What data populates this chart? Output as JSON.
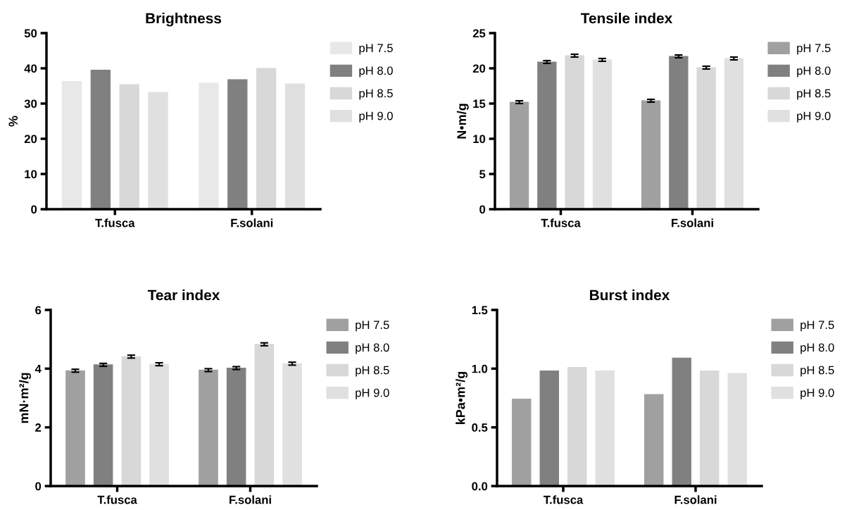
{
  "chart_data": [
    {
      "type": "bar",
      "title": "Brightness",
      "ylabel": "%",
      "categories": [
        "T.fusca",
        "F.solani"
      ],
      "ylim": [
        0,
        50
      ],
      "yticks": [
        0,
        10,
        20,
        30,
        40,
        50
      ],
      "grid": false,
      "legend": "right",
      "series": [
        {
          "name": "pH 7.5",
          "color": "#e8e8e8",
          "values": [
            36.3,
            35.8
          ]
        },
        {
          "name": "pH 8.0",
          "color": "#808080",
          "values": [
            39.5,
            36.8
          ]
        },
        {
          "name": "pH 8.5",
          "color": "#d8d8d8",
          "values": [
            35.4,
            40.0
          ]
        },
        {
          "name": "pH 9.0",
          "color": "#e0e0e0",
          "values": [
            33.2,
            35.6
          ]
        }
      ]
    },
    {
      "type": "bar",
      "title": "Tensile index",
      "ylabel": "N•m/g",
      "categories": [
        "T.fusca",
        "F.solani"
      ],
      "ylim": [
        0,
        25
      ],
      "yticks": [
        0,
        5,
        10,
        15,
        20,
        25
      ],
      "grid": false,
      "legend": "right",
      "series": [
        {
          "name": "pH 7.5",
          "color": "#a0a0a0",
          "values": [
            15.2,
            15.4
          ],
          "errors": [
            0.2,
            0.2
          ]
        },
        {
          "name": "pH 8.0",
          "color": "#808080",
          "values": [
            20.9,
            21.7
          ],
          "errors": [
            0.2,
            0.2
          ]
        },
        {
          "name": "pH 8.5",
          "color": "#d8d8d8",
          "values": [
            21.8,
            20.1
          ],
          "errors": [
            0.2,
            0.2
          ]
        },
        {
          "name": "pH 9.0",
          "color": "#e0e0e0",
          "values": [
            21.2,
            21.4
          ],
          "errors": [
            0.2,
            0.2
          ]
        }
      ]
    },
    {
      "type": "bar",
      "title": "Tear index",
      "ylabel": "mN·m²/g",
      "categories": [
        "T.fusca",
        "F.solani"
      ],
      "ylim": [
        0,
        6
      ],
      "yticks": [
        0,
        2,
        4,
        6
      ],
      "grid": false,
      "legend": "right",
      "series": [
        {
          "name": "pH 7.5",
          "color": "#a0a0a0",
          "values": [
            3.93,
            3.95
          ],
          "errors": [
            0.05,
            0.05
          ]
        },
        {
          "name": "pH 8.0",
          "color": "#808080",
          "values": [
            4.13,
            4.02
          ],
          "errors": [
            0.05,
            0.05
          ]
        },
        {
          "name": "pH 8.5",
          "color": "#d8d8d8",
          "values": [
            4.41,
            4.83
          ],
          "errors": [
            0.05,
            0.05
          ]
        },
        {
          "name": "pH 9.0",
          "color": "#e0e0e0",
          "values": [
            4.15,
            4.17
          ],
          "errors": [
            0.05,
            0.05
          ]
        }
      ]
    },
    {
      "type": "bar",
      "title": "Burst index",
      "ylabel": "kPa•m²/g",
      "categories": [
        "T.fusca",
        "F.solani"
      ],
      "ylim": [
        0,
        1.5
      ],
      "yticks": [
        {
          "value": 0,
          "label": "0.0"
        },
        0.5,
        {
          "value": 1,
          "label": "1.0"
        },
        1.5
      ],
      "grid": false,
      "legend": "right",
      "series": [
        {
          "name": "pH 7.5",
          "color": "#a0a0a0",
          "values": [
            0.74,
            0.78
          ]
        },
        {
          "name": "pH 8.0",
          "color": "#808080",
          "values": [
            0.98,
            1.09
          ]
        },
        {
          "name": "pH 8.5",
          "color": "#d8d8d8",
          "values": [
            1.01,
            0.98
          ]
        },
        {
          "name": "pH 9.0",
          "color": "#e0e0e0",
          "values": [
            0.98,
            0.96
          ]
        }
      ]
    }
  ]
}
